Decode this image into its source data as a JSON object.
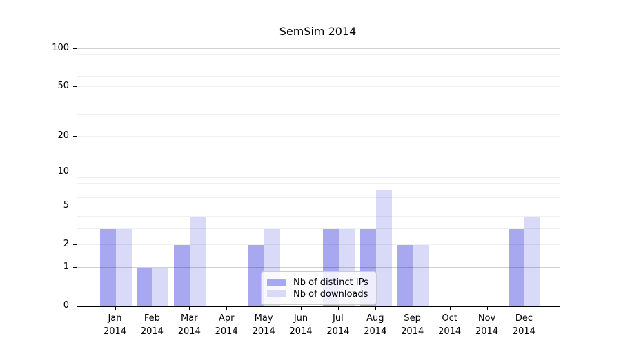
{
  "title": "SemSim 2014",
  "chart_data": {
    "type": "bar",
    "title": "SemSim 2014",
    "categories": [
      "Jan 2014",
      "Feb 2014",
      "Mar 2014",
      "Apr 2014",
      "May 2014",
      "Jun 2014",
      "Jul 2014",
      "Aug 2014",
      "Sep 2014",
      "Oct 2014",
      "Nov 2014",
      "Dec 2014"
    ],
    "series": [
      {
        "name": "Nb of distinct IPs",
        "color": "#a8a8f0",
        "values": [
          3,
          1,
          2,
          0,
          2,
          0,
          3,
          3,
          2,
          0,
          0,
          3
        ]
      },
      {
        "name": "Nb of downloads",
        "color": "#d9d9f8",
        "values": [
          3,
          1,
          4,
          0,
          3,
          0,
          3,
          7,
          2,
          0,
          0,
          4
        ]
      }
    ],
    "xlabel": "",
    "ylabel": "",
    "yscale": "log1p",
    "ylim": [
      0,
      110
    ],
    "y_ticks": [
      0,
      1,
      2,
      5,
      10,
      20,
      50,
      100
    ],
    "y_major_gridlines": [
      1,
      10,
      100
    ],
    "y_minor_gridlines": [
      2,
      3,
      4,
      5,
      6,
      7,
      8,
      9,
      20,
      30,
      40,
      50,
      60,
      70,
      80,
      90
    ],
    "grid": true,
    "legend_position": "lower center inside"
  },
  "colors": {
    "major_gridline": "rgba(0,0,0,0.18)",
    "minor_gridline": "rgba(0,0,0,0.06)",
    "axis": "#000000"
  }
}
